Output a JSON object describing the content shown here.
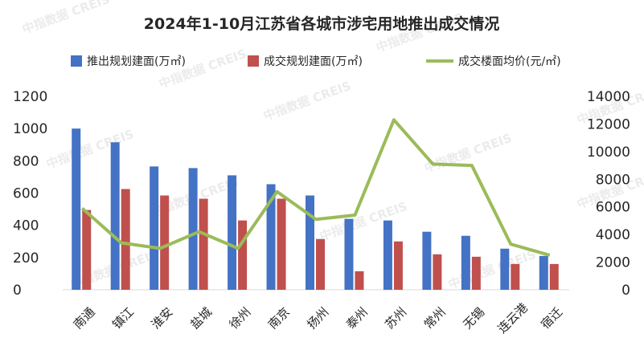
{
  "chart_data": {
    "type": "bar",
    "title": "2024年1-10月江苏省各城市涉宅用地推出成交情况",
    "categories": [
      "南通",
      "镇江",
      "淮安",
      "盐城",
      "徐州",
      "南京",
      "扬州",
      "泰州",
      "苏州",
      "常州",
      "无锡",
      "连云港",
      "宿迁"
    ],
    "series": [
      {
        "name": "推出规划建面(万㎡)",
        "type": "bar",
        "axis": "left",
        "color": "#4472C4",
        "values": [
          1000,
          915,
          765,
          755,
          710,
          655,
          585,
          440,
          430,
          360,
          335,
          255,
          210
        ]
      },
      {
        "name": "成交规划建面(万㎡)",
        "type": "bar",
        "axis": "left",
        "color": "#C0504D",
        "values": [
          495,
          625,
          585,
          565,
          430,
          565,
          315,
          115,
          300,
          220,
          205,
          160,
          160
        ]
      },
      {
        "name": "成交楼面均价(元/㎡)",
        "type": "line",
        "axis": "right",
        "color": "#9BBB59",
        "values": [
          5900,
          3400,
          3000,
          4200,
          3000,
          7100,
          5100,
          5400,
          12300,
          9100,
          9000,
          3300,
          2500
        ]
      }
    ],
    "ylim_left": [
      0,
      1200
    ],
    "yticks_left": [
      "0",
      "200",
      "400",
      "600",
      "800",
      "1000",
      "1200"
    ],
    "ylim_right": [
      0,
      14000
    ],
    "yticks_right": [
      "0",
      "2000",
      "4000",
      "6000",
      "8000",
      "10000",
      "12000",
      "14000"
    ],
    "legend_position": "top",
    "grid": false
  },
  "watermark": "中指数据 CREIS"
}
